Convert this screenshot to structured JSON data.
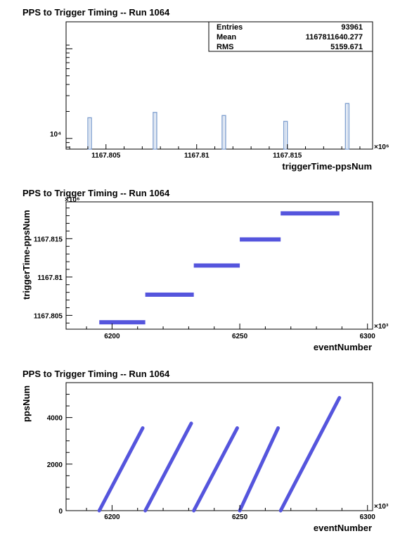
{
  "chart_data": [
    {
      "type": "bar",
      "title": "PPS to Trigger Timing -- Run 1064",
      "xlabel": "triggerTime-ppsNum",
      "ylabel": "",
      "x_multiplier": "×10⁶",
      "xlim": [
        1167.8028,
        1167.8197
      ],
      "yscale": "log",
      "ylim": [
        7600,
        200000
      ],
      "xticks": [
        "1167.805",
        "1167.81",
        "1167.815"
      ],
      "ytick": "10⁴",
      "bars": [
        {
          "x": 1167.8041,
          "value": 17000
        },
        {
          "x": 1167.8077,
          "value": 19500
        },
        {
          "x": 1167.8115,
          "value": 18000
        },
        {
          "x": 1167.8149,
          "value": 15500
        },
        {
          "x": 1167.8183,
          "value": 24500
        }
      ],
      "stats": {
        "entries_label": "Entries",
        "entries": "93961",
        "mean_label": "Mean",
        "mean": "1167811640.277",
        "rms_label": "RMS",
        "rms": "5159.671"
      },
      "color": "#7f9fcf"
    },
    {
      "type": "scatter",
      "title": "PPS to Trigger Timing -- Run 1064",
      "xlabel": "eventNumber",
      "ylabel": "triggerTime-ppsNum",
      "x_multiplier": "×10³",
      "y_multiplier": "×10⁶",
      "xlim": [
        6182,
        6302
      ],
      "ylim": [
        1167.8032,
        1167.8198
      ],
      "xticks": [
        6200,
        6250,
        6300
      ],
      "yticks": [
        {
          "v": 1167.805,
          "label": "1167.805"
        },
        {
          "v": 1167.81,
          "label": "1167.81"
        },
        {
          "v": 1167.815,
          "label": "1167.815"
        }
      ],
      "segments": [
        {
          "x0": 6195,
          "x1": 6213,
          "y": 1167.8041
        },
        {
          "x0": 6213,
          "x1": 6232,
          "y": 1167.8077
        },
        {
          "x0": 6232,
          "x1": 6250,
          "y": 1167.8115
        },
        {
          "x0": 6250,
          "x1": 6266,
          "y": 1167.8149
        },
        {
          "x0": 6266,
          "x1": 6289,
          "y": 1167.8183
        }
      ],
      "color": "#5555dd"
    },
    {
      "type": "scatter",
      "title": "PPS to Trigger Timing -- Run 1064",
      "xlabel": "eventNumber",
      "ylabel": "ppsNum",
      "x_multiplier": "×10³",
      "xlim": [
        6182,
        6302
      ],
      "ylim": [
        0,
        5500
      ],
      "xticks": [
        6200,
        6250,
        6300
      ],
      "yticks": [
        0,
        2000,
        4000
      ],
      "segments": [
        {
          "x0": 6195,
          "y0": 0,
          "x1": 6212,
          "y1": 3550
        },
        {
          "x0": 6213,
          "y0": 0,
          "x1": 6231,
          "y1": 3750
        },
        {
          "x0": 6232,
          "y0": 0,
          "x1": 6249,
          "y1": 3550
        },
        {
          "x0": 6250,
          "y0": 0,
          "x1": 6265,
          "y1": 3550
        },
        {
          "x0": 6266,
          "y0": 0,
          "x1": 6289,
          "y1": 4850
        }
      ],
      "color": "#5555dd"
    }
  ]
}
